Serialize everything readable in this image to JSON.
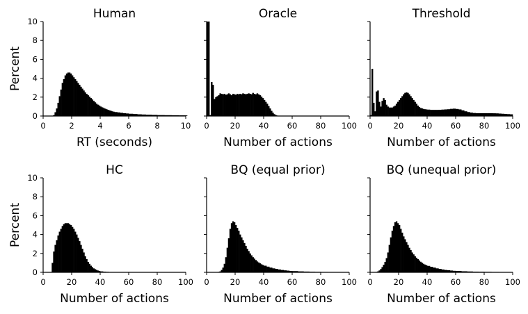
{
  "colors": {
    "bar": "#000000",
    "axis": "#000000",
    "background": "#ffffff"
  },
  "chart_data": [
    {
      "type": "bar",
      "title": "Human",
      "xlabel": "RT (seconds)",
      "ylabel": "Percent",
      "xlim": [
        0,
        10
      ],
      "ylim": [
        0,
        10
      ],
      "xticks": [
        "0",
        "2",
        "4",
        "6",
        "8",
        "10"
      ],
      "yticks": [
        "0",
        "2",
        "4",
        "6",
        "8",
        "10"
      ],
      "bin_width": 0.1,
      "points": [
        [
          0.7,
          0.1
        ],
        [
          0.8,
          0.4
        ],
        [
          0.9,
          0.8
        ],
        [
          1.0,
          1.4
        ],
        [
          1.1,
          2.1
        ],
        [
          1.2,
          2.8
        ],
        [
          1.3,
          3.5
        ],
        [
          1.4,
          3.9
        ],
        [
          1.5,
          4.3
        ],
        [
          1.6,
          4.5
        ],
        [
          1.7,
          4.6
        ],
        [
          1.8,
          4.6
        ],
        [
          1.9,
          4.5
        ],
        [
          2.0,
          4.3
        ],
        [
          2.1,
          4.1
        ],
        [
          2.2,
          3.9
        ],
        [
          2.3,
          3.7
        ],
        [
          2.4,
          3.5
        ],
        [
          2.5,
          3.3
        ],
        [
          2.6,
          3.1
        ],
        [
          2.7,
          2.9
        ],
        [
          2.8,
          2.7
        ],
        [
          2.9,
          2.5
        ],
        [
          3.0,
          2.35
        ],
        [
          3.1,
          2.2
        ],
        [
          3.2,
          2.05
        ],
        [
          3.3,
          1.9
        ],
        [
          3.4,
          1.75
        ],
        [
          3.5,
          1.6
        ],
        [
          3.6,
          1.45
        ],
        [
          3.7,
          1.3
        ],
        [
          3.8,
          1.2
        ],
        [
          3.9,
          1.1
        ],
        [
          4.0,
          1.0
        ],
        [
          4.1,
          0.92
        ],
        [
          4.2,
          0.85
        ],
        [
          4.3,
          0.78
        ],
        [
          4.4,
          0.72
        ],
        [
          4.5,
          0.66
        ],
        [
          4.6,
          0.6
        ],
        [
          4.7,
          0.55
        ],
        [
          4.8,
          0.5
        ],
        [
          4.9,
          0.46
        ],
        [
          5.0,
          0.42
        ],
        [
          5.2,
          0.38
        ],
        [
          5.4,
          0.34
        ],
        [
          5.6,
          0.3
        ],
        [
          5.8,
          0.27
        ],
        [
          6.0,
          0.24
        ],
        [
          6.3,
          0.21
        ],
        [
          6.6,
          0.18
        ],
        [
          6.9,
          0.16
        ],
        [
          7.2,
          0.14
        ],
        [
          7.6,
          0.12
        ],
        [
          8.0,
          0.1
        ],
        [
          8.5,
          0.09
        ],
        [
          9.0,
          0.08
        ],
        [
          9.5,
          0.07
        ],
        [
          10.0,
          0.06
        ]
      ]
    },
    {
      "type": "bar",
      "title": "Oracle",
      "xlabel": "Number of actions",
      "ylabel": "",
      "xlim": [
        0,
        100
      ],
      "ylim": [
        0,
        10
      ],
      "xticks": [
        "0",
        "20",
        "40",
        "60",
        "80",
        "100"
      ],
      "yticks": [],
      "bin_width": 1,
      "points": [
        [
          0,
          10
        ],
        [
          1,
          10
        ],
        [
          2,
          0.1
        ],
        [
          3,
          3.6
        ],
        [
          4,
          3.3
        ],
        [
          5,
          1.8
        ],
        [
          6,
          2.0
        ],
        [
          7,
          2.1
        ],
        [
          8,
          2.2
        ],
        [
          9,
          2.4
        ],
        [
          10,
          2.35
        ],
        [
          11,
          2.3
        ],
        [
          12,
          2.35
        ],
        [
          13,
          2.25
        ],
        [
          14,
          2.3
        ],
        [
          15,
          2.4
        ],
        [
          16,
          2.3
        ],
        [
          17,
          2.2
        ],
        [
          18,
          2.35
        ],
        [
          19,
          2.3
        ],
        [
          20,
          2.25
        ],
        [
          21,
          2.35
        ],
        [
          22,
          2.3
        ],
        [
          23,
          2.35
        ],
        [
          24,
          2.3
        ],
        [
          25,
          2.4
        ],
        [
          26,
          2.35
        ],
        [
          27,
          2.3
        ],
        [
          28,
          2.35
        ],
        [
          29,
          2.4
        ],
        [
          30,
          2.35
        ],
        [
          31,
          2.3
        ],
        [
          32,
          2.45
        ],
        [
          33,
          2.35
        ],
        [
          34,
          2.3
        ],
        [
          35,
          2.4
        ],
        [
          36,
          2.3
        ],
        [
          37,
          2.2
        ],
        [
          38,
          2.05
        ],
        [
          39,
          1.9
        ],
        [
          40,
          1.7
        ],
        [
          41,
          1.5
        ],
        [
          42,
          1.3
        ],
        [
          43,
          1.05
        ],
        [
          44,
          0.8
        ],
        [
          45,
          0.55
        ],
        [
          46,
          0.35
        ],
        [
          47,
          0.2
        ],
        [
          48,
          0.1
        ],
        [
          49,
          0.05
        ]
      ]
    },
    {
      "type": "bar",
      "title": "Threshold",
      "xlabel": "Number of actions",
      "ylabel": "",
      "xlim": [
        0,
        100
      ],
      "ylim": [
        0,
        10
      ],
      "xticks": [
        "0",
        "20",
        "40",
        "60",
        "80",
        "100"
      ],
      "yticks": [],
      "bin_width": 1,
      "points": [
        [
          0,
          0.1
        ],
        [
          1,
          5.0
        ],
        [
          2,
          1.4
        ],
        [
          3,
          0.5
        ],
        [
          4,
          2.6
        ],
        [
          5,
          2.7
        ],
        [
          6,
          1.5
        ],
        [
          7,
          1.0
        ],
        [
          8,
          1.6
        ],
        [
          9,
          1.9
        ],
        [
          10,
          1.7
        ],
        [
          11,
          1.2
        ],
        [
          12,
          1.0
        ],
        [
          13,
          0.9
        ],
        [
          14,
          0.9
        ],
        [
          15,
          0.9
        ],
        [
          16,
          1.0
        ],
        [
          17,
          1.1
        ],
        [
          18,
          1.3
        ],
        [
          19,
          1.5
        ],
        [
          20,
          1.7
        ],
        [
          21,
          1.9
        ],
        [
          22,
          2.1
        ],
        [
          23,
          2.3
        ],
        [
          24,
          2.45
        ],
        [
          25,
          2.5
        ],
        [
          26,
          2.45
        ],
        [
          27,
          2.3
        ],
        [
          28,
          2.1
        ],
        [
          29,
          1.9
        ],
        [
          30,
          1.7
        ],
        [
          31,
          1.5
        ],
        [
          32,
          1.3
        ],
        [
          33,
          1.1
        ],
        [
          34,
          0.95
        ],
        [
          35,
          0.85
        ],
        [
          36,
          0.8
        ],
        [
          37,
          0.75
        ],
        [
          38,
          0.72
        ],
        [
          39,
          0.7
        ],
        [
          40,
          0.68
        ],
        [
          42,
          0.65
        ],
        [
          44,
          0.65
        ],
        [
          46,
          0.65
        ],
        [
          48,
          0.66
        ],
        [
          50,
          0.68
        ],
        [
          52,
          0.7
        ],
        [
          54,
          0.72
        ],
        [
          56,
          0.76
        ],
        [
          58,
          0.78
        ],
        [
          60,
          0.75
        ],
        [
          62,
          0.7
        ],
        [
          64,
          0.6
        ],
        [
          66,
          0.5
        ],
        [
          68,
          0.42
        ],
        [
          70,
          0.36
        ],
        [
          72,
          0.32
        ],
        [
          74,
          0.3
        ],
        [
          76,
          0.3
        ],
        [
          78,
          0.3
        ],
        [
          80,
          0.3
        ],
        [
          82,
          0.3
        ],
        [
          84,
          0.3
        ],
        [
          86,
          0.29
        ],
        [
          88,
          0.28
        ],
        [
          90,
          0.26
        ],
        [
          92,
          0.24
        ],
        [
          94,
          0.22
        ],
        [
          96,
          0.2
        ],
        [
          98,
          0.18
        ],
        [
          99,
          0.18
        ]
      ]
    },
    {
      "type": "bar",
      "title": "HC",
      "xlabel": "Number of actions",
      "ylabel": "Percent",
      "xlim": [
        0,
        100
      ],
      "ylim": [
        0,
        10
      ],
      "xticks": [
        "0",
        "20",
        "40",
        "60",
        "80",
        "100"
      ],
      "yticks": [
        "0",
        "2",
        "4",
        "6",
        "8",
        "10"
      ],
      "bin_width": 1,
      "points": [
        [
          6,
          1.0
        ],
        [
          7,
          2.2
        ],
        [
          8,
          2.9
        ],
        [
          9,
          3.4
        ],
        [
          10,
          3.9
        ],
        [
          11,
          4.3
        ],
        [
          12,
          4.6
        ],
        [
          13,
          4.9
        ],
        [
          14,
          5.1
        ],
        [
          15,
          5.2
        ],
        [
          16,
          5.2
        ],
        [
          17,
          5.2
        ],
        [
          18,
          5.1
        ],
        [
          19,
          5.0
        ],
        [
          20,
          4.8
        ],
        [
          21,
          4.6
        ],
        [
          22,
          4.3
        ],
        [
          23,
          4.0
        ],
        [
          24,
          3.65
        ],
        [
          25,
          3.3
        ],
        [
          26,
          2.9
        ],
        [
          27,
          2.5
        ],
        [
          28,
          2.1
        ],
        [
          29,
          1.7
        ],
        [
          30,
          1.4
        ],
        [
          31,
          1.1
        ],
        [
          32,
          0.9
        ],
        [
          33,
          0.7
        ],
        [
          34,
          0.55
        ],
        [
          35,
          0.42
        ],
        [
          36,
          0.33
        ],
        [
          37,
          0.25
        ],
        [
          38,
          0.19
        ],
        [
          39,
          0.14
        ],
        [
          40,
          0.1
        ],
        [
          42,
          0.07
        ],
        [
          44,
          0.05
        ],
        [
          46,
          0.03
        ]
      ]
    },
    {
      "type": "bar",
      "title": "BQ (equal prior)",
      "xlabel": "Number of actions",
      "ylabel": "",
      "xlim": [
        0,
        100
      ],
      "ylim": [
        0,
        10
      ],
      "xticks": [
        "0",
        "20",
        "40",
        "60",
        "80",
        "100"
      ],
      "yticks": [],
      "bin_width": 1,
      "points": [
        [
          8,
          0.05
        ],
        [
          9,
          0.1
        ],
        [
          10,
          0.25
        ],
        [
          11,
          0.5
        ],
        [
          12,
          0.9
        ],
        [
          13,
          1.6
        ],
        [
          14,
          2.6
        ],
        [
          15,
          3.6
        ],
        [
          16,
          4.6
        ],
        [
          17,
          5.2
        ],
        [
          18,
          5.4
        ],
        [
          19,
          5.3
        ],
        [
          20,
          5.0
        ],
        [
          21,
          4.7
        ],
        [
          22,
          4.4
        ],
        [
          23,
          4.0
        ],
        [
          24,
          3.7
        ],
        [
          25,
          3.4
        ],
        [
          26,
          3.1
        ],
        [
          27,
          2.8
        ],
        [
          28,
          2.5
        ],
        [
          29,
          2.25
        ],
        [
          30,
          2.0
        ],
        [
          31,
          1.8
        ],
        [
          32,
          1.6
        ],
        [
          33,
          1.45
        ],
        [
          34,
          1.3
        ],
        [
          35,
          1.15
        ],
        [
          36,
          1.05
        ],
        [
          37,
          0.95
        ],
        [
          38,
          0.85
        ],
        [
          39,
          0.78
        ],
        [
          40,
          0.7
        ],
        [
          42,
          0.6
        ],
        [
          44,
          0.5
        ],
        [
          46,
          0.42
        ],
        [
          48,
          0.36
        ],
        [
          50,
          0.3
        ],
        [
          52,
          0.25
        ],
        [
          54,
          0.21
        ],
        [
          56,
          0.18
        ],
        [
          58,
          0.15
        ],
        [
          60,
          0.13
        ],
        [
          64,
          0.1
        ],
        [
          68,
          0.08
        ],
        [
          72,
          0.06
        ],
        [
          76,
          0.05
        ],
        [
          80,
          0.04
        ],
        [
          85,
          0.03
        ],
        [
          90,
          0.02
        ],
        [
          95,
          0.02
        ]
      ]
    },
    {
      "type": "bar",
      "title": "BQ (unequal prior)",
      "xlabel": "Number of actions",
      "ylabel": "",
      "xlim": [
        0,
        100
      ],
      "ylim": [
        0,
        10
      ],
      "xticks": [
        "0",
        "20",
        "40",
        "60",
        "80",
        "100"
      ],
      "yticks": [],
      "bin_width": 1,
      "points": [
        [
          4,
          0.05
        ],
        [
          5,
          0.1
        ],
        [
          6,
          0.2
        ],
        [
          7,
          0.35
        ],
        [
          8,
          0.55
        ],
        [
          9,
          0.8
        ],
        [
          10,
          1.1
        ],
        [
          11,
          1.5
        ],
        [
          12,
          2.1
        ],
        [
          13,
          2.9
        ],
        [
          14,
          3.7
        ],
        [
          15,
          4.4
        ],
        [
          16,
          4.9
        ],
        [
          17,
          5.3
        ],
        [
          18,
          5.4
        ],
        [
          19,
          5.2
        ],
        [
          20,
          5.0
        ],
        [
          21,
          4.6
        ],
        [
          22,
          4.2
        ],
        [
          23,
          3.8
        ],
        [
          24,
          3.5
        ],
        [
          25,
          3.2
        ],
        [
          26,
          2.9
        ],
        [
          27,
          2.6
        ],
        [
          28,
          2.35
        ],
        [
          29,
          2.1
        ],
        [
          30,
          1.9
        ],
        [
          31,
          1.7
        ],
        [
          32,
          1.55
        ],
        [
          33,
          1.4
        ],
        [
          34,
          1.25
        ],
        [
          35,
          1.12
        ],
        [
          36,
          1.0
        ],
        [
          37,
          0.9
        ],
        [
          38,
          0.82
        ],
        [
          39,
          0.75
        ],
        [
          40,
          0.68
        ],
        [
          42,
          0.58
        ],
        [
          44,
          0.5
        ],
        [
          46,
          0.42
        ],
        [
          48,
          0.36
        ],
        [
          50,
          0.3
        ],
        [
          52,
          0.25
        ],
        [
          54,
          0.22
        ],
        [
          56,
          0.19
        ],
        [
          58,
          0.16
        ],
        [
          60,
          0.14
        ],
        [
          64,
          0.11
        ],
        [
          68,
          0.09
        ],
        [
          72,
          0.07
        ],
        [
          76,
          0.06
        ],
        [
          80,
          0.05
        ],
        [
          85,
          0.04
        ],
        [
          90,
          0.03
        ],
        [
          95,
          0.02
        ]
      ]
    }
  ]
}
